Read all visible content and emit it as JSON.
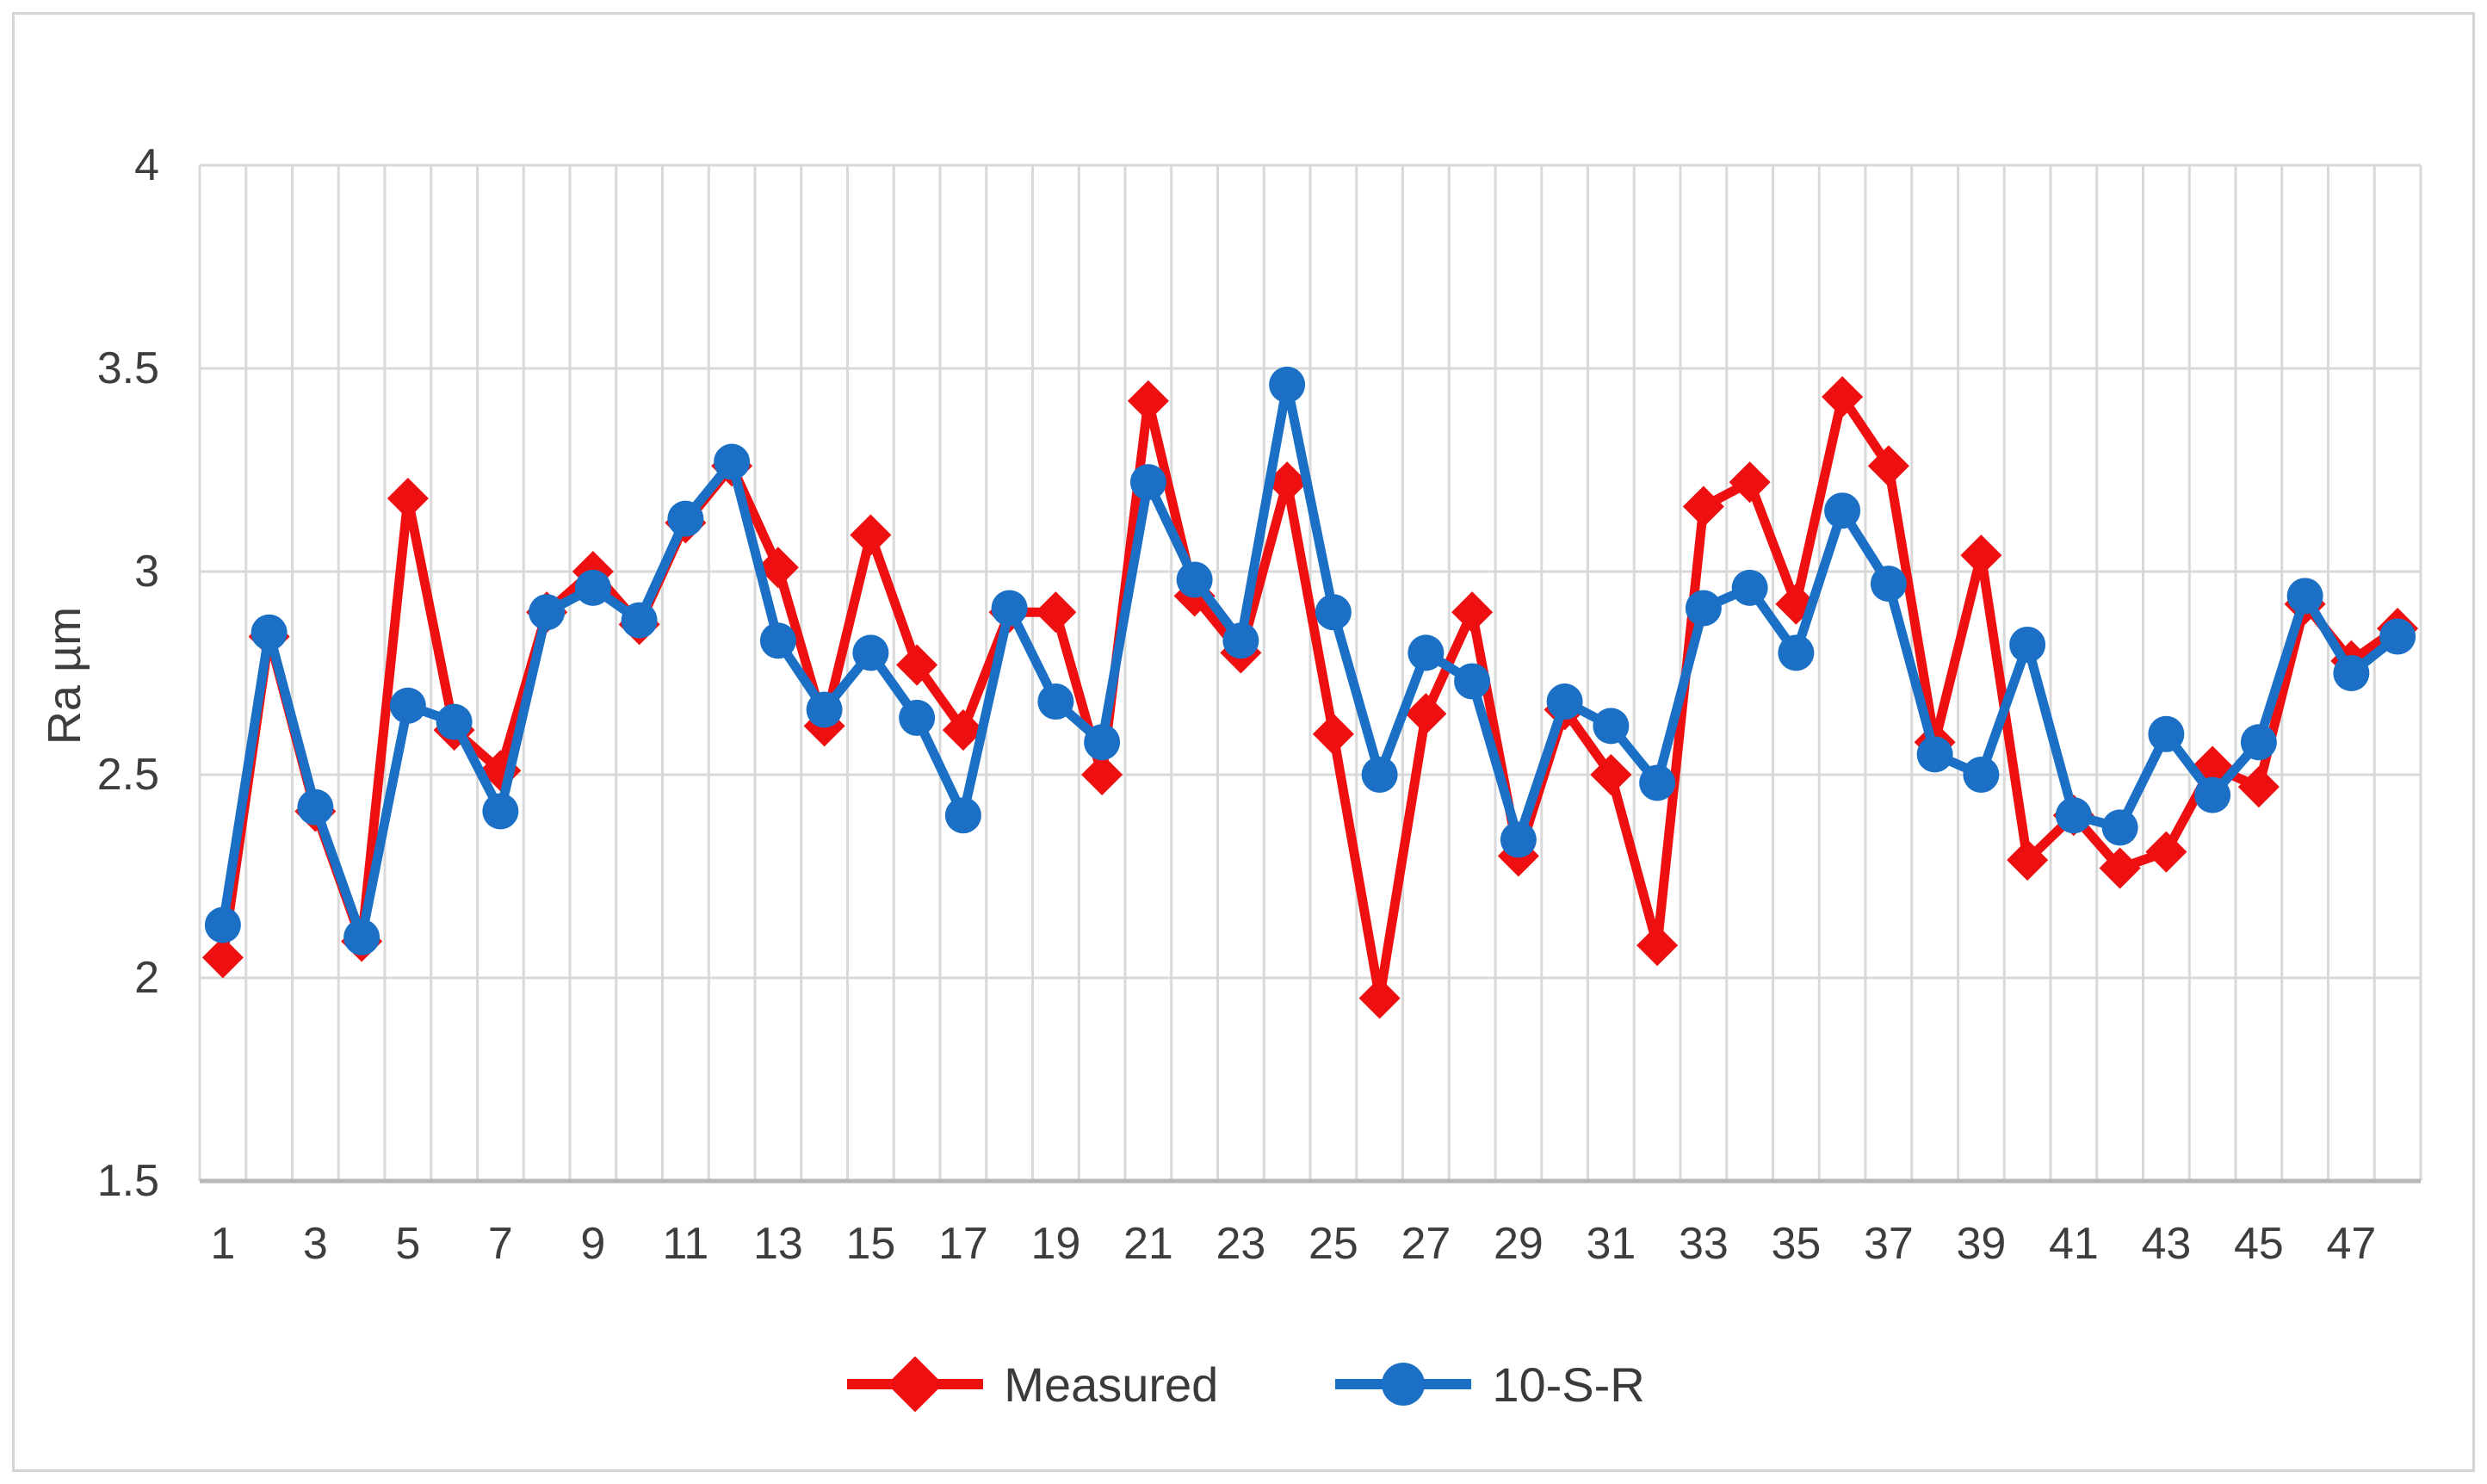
{
  "figure": {
    "background": "#ffffff",
    "frame_color": "#d4d4d4"
  },
  "chart_data": {
    "type": "line",
    "title": "",
    "xlabel": "",
    "ylabel": "Ra µm",
    "ylim": [
      1.5,
      4.0
    ],
    "ytick_step": 0.5,
    "ytick_labels": [
      "4",
      "3.5",
      "3",
      "2.5",
      "2",
      "1.5"
    ],
    "grid": {
      "horizontal": true,
      "vertical": true,
      "color": "#d9d9d9",
      "axis_line_color": "#b7b7b7",
      "text_color": "#3d3d3d"
    },
    "categories": [
      1,
      2,
      3,
      4,
      5,
      6,
      7,
      8,
      9,
      10,
      11,
      12,
      13,
      14,
      15,
      16,
      17,
      18,
      19,
      20,
      21,
      22,
      23,
      24,
      25,
      26,
      27,
      28,
      29,
      30,
      31,
      32,
      33,
      34,
      35,
      36,
      37,
      38,
      39,
      40,
      41,
      42,
      43,
      44,
      45,
      46,
      47,
      48
    ],
    "shown_xtick_labels": [
      "1",
      "3",
      "5",
      "7",
      "9",
      "11",
      "13",
      "15",
      "17",
      "19",
      "21",
      "23",
      "25",
      "27",
      "29",
      "31",
      "33",
      "35",
      "37",
      "39",
      "41",
      "43",
      "45",
      "47"
    ],
    "legend": {
      "position": "bottom",
      "entries": [
        "Measured",
        "10-S-R"
      ]
    },
    "series": [
      {
        "name": "Measured",
        "color": "#ee1010",
        "marker": "diamond",
        "values": [
          2.05,
          2.84,
          2.41,
          2.09,
          3.18,
          2.61,
          2.51,
          2.9,
          3.0,
          2.87,
          3.12,
          3.26,
          3.01,
          2.62,
          3.09,
          2.77,
          2.61,
          2.9,
          2.9,
          2.5,
          3.42,
          2.94,
          2.8,
          3.22,
          2.6,
          1.95,
          2.65,
          2.9,
          2.3,
          2.66,
          2.5,
          2.08,
          3.16,
          3.22,
          2.92,
          3.43,
          3.26,
          2.58,
          3.04,
          2.29,
          2.4,
          2.27,
          2.31,
          2.52,
          2.47,
          2.92,
          2.78,
          2.86
        ]
      },
      {
        "name": "10-S-R",
        "color": "#1b70c6",
        "marker": "circle",
        "values": [
          2.13,
          2.85,
          2.42,
          2.1,
          2.67,
          2.63,
          2.41,
          2.9,
          2.96,
          2.88,
          3.13,
          3.27,
          2.83,
          2.66,
          2.8,
          2.64,
          2.4,
          2.91,
          2.68,
          2.58,
          3.22,
          2.98,
          2.83,
          3.46,
          2.9,
          2.5,
          2.8,
          2.73,
          2.34,
          2.68,
          2.62,
          2.48,
          2.91,
          2.96,
          2.8,
          3.15,
          2.97,
          2.55,
          2.5,
          2.82,
          2.4,
          2.37,
          2.6,
          2.45,
          2.58,
          2.94,
          2.75,
          2.84
        ]
      }
    ]
  }
}
